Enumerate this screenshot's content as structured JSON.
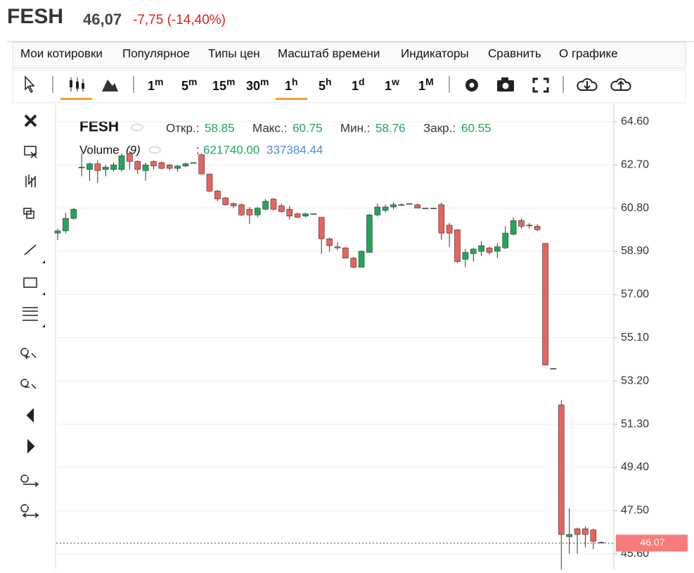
{
  "header": {
    "symbol": "FESH",
    "price": "46,07",
    "change": "-7,75 (-14,40%)"
  },
  "menu": [
    "Мои котировки",
    "Популярное",
    "Типы цен",
    "Масштаб времени",
    "Индикаторы",
    "Сравнить",
    "О графике"
  ],
  "timeframes": [
    {
      "main": "1",
      "sup": "m"
    },
    {
      "main": "5",
      "sup": "m"
    },
    {
      "main": "15",
      "sup": "m"
    },
    {
      "main": "30",
      "sup": "m"
    },
    {
      "main": "1",
      "sup": "h"
    },
    {
      "main": "5",
      "sup": "h"
    },
    {
      "main": "1",
      "sup": "d"
    },
    {
      "main": "1",
      "sup": "w"
    },
    {
      "main": "1",
      "sup": "M"
    }
  ],
  "chart_data": {
    "type": "candlestick",
    "title": "FESH",
    "legend": {
      "open_label": "Откр.:",
      "open": "58.85",
      "high_label": "Макс.:",
      "high": "60.75",
      "low_label": "Мин.:",
      "low": "58.76",
      "close_label": "Закр.:",
      "close": "60.55",
      "volume_label": "Volume",
      "volume_period": "(9)",
      "volume_sep": ":",
      "volume_up": "621740.00",
      "volume_down": "337384.44"
    },
    "open": [
      59.7,
      59.8,
      60.35,
      62.6,
      62.5,
      62.75,
      62.5,
      62.5,
      62.5,
      63.2,
      62.85,
      62.45,
      62.85,
      62.8,
      62.7,
      62.55,
      62.65,
      62.8,
      63.15,
      62.3,
      61.55,
      61.25,
      61.0,
      60.95,
      60.75,
      60.5,
      60.75,
      61.2,
      60.9,
      60.75,
      60.55,
      60.45,
      60.55,
      60.4,
      59.45,
      59.1,
      59.05,
      58.6,
      58.2,
      58.85,
      60.5,
      60.7,
      60.85,
      60.95,
      61.0,
      60.95,
      60.8,
      60.8,
      60.95,
      60.05,
      59.85,
      58.55,
      58.8,
      58.9,
      59.05,
      58.9,
      59.05,
      59.65,
      60.25,
      60.05,
      60.0,
      59.25,
      53.75,
      52.15,
      46.35,
      46.7,
      46.7,
      46.65,
      46.1
    ],
    "high": [
      59.9,
      60.6,
      60.8,
      63.2,
      62.8,
      62.9,
      62.7,
      62.8,
      63.2,
      63.3,
      62.9,
      62.8,
      62.9,
      62.85,
      62.75,
      62.7,
      62.8,
      62.8,
      63.2,
      62.3,
      61.6,
      61.3,
      61.05,
      61.0,
      60.85,
      60.85,
      61.2,
      61.25,
      61.0,
      60.9,
      60.6,
      60.6,
      60.55,
      60.4,
      59.5,
      59.3,
      59.1,
      58.65,
      58.95,
      60.55,
      61.0,
      60.95,
      61.05,
      61.0,
      61.0,
      61.0,
      60.8,
      60.8,
      61.05,
      60.15,
      59.85,
      59.0,
      59.05,
      59.35,
      59.1,
      59.25,
      60.0,
      60.4,
      60.35,
      60.15,
      60.1,
      59.25,
      53.75,
      52.35,
      47.6,
      46.75,
      46.8,
      46.7,
      46.15
    ],
    "low": [
      59.4,
      59.7,
      60.3,
      62.2,
      62.0,
      61.9,
      62.2,
      62.4,
      62.4,
      62.5,
      62.3,
      62.0,
      62.5,
      62.5,
      62.45,
      62.4,
      62.6,
      62.8,
      62.3,
      61.5,
      61.1,
      60.9,
      60.8,
      60.45,
      60.1,
      60.4,
      60.7,
      60.7,
      60.6,
      60.3,
      60.35,
      60.4,
      60.55,
      58.8,
      58.9,
      58.95,
      58.6,
      58.15,
      58.2,
      58.85,
      60.45,
      60.6,
      60.75,
      60.9,
      61.0,
      60.8,
      60.8,
      60.8,
      59.4,
      59.1,
      58.4,
      58.2,
      58.45,
      58.7,
      58.75,
      58.6,
      59.0,
      59.6,
      59.9,
      59.9,
      59.8,
      53.9,
      53.75,
      44.9,
      45.6,
      45.6,
      45.9,
      45.8,
      46.05
    ],
    "close": [
      59.8,
      60.35,
      60.75,
      62.6,
      62.75,
      62.45,
      62.6,
      62.7,
      63.1,
      62.85,
      62.5,
      62.7,
      62.65,
      62.55,
      62.55,
      62.65,
      62.75,
      62.8,
      62.3,
      61.55,
      61.2,
      60.95,
      60.9,
      60.5,
      60.5,
      60.8,
      61.1,
      60.75,
      60.65,
      60.45,
      60.4,
      60.55,
      60.55,
      59.45,
      59.15,
      59.05,
      58.6,
      58.2,
      58.9,
      60.5,
      60.85,
      60.85,
      60.95,
      60.95,
      61.0,
      60.8,
      60.8,
      60.8,
      59.7,
      59.7,
      58.45,
      58.85,
      59.0,
      59.15,
      58.85,
      59.1,
      59.7,
      60.25,
      60.0,
      60.05,
      59.85,
      53.9,
      53.75,
      46.45,
      46.45,
      46.45,
      46.45,
      46.15,
      46.07
    ],
    "up_color": "#1fa85a",
    "down_color": "#f0605a",
    "ylim": [
      44.91,
      65.37
    ],
    "yticks": [
      {
        "value": 64.6,
        "label": "64.60"
      },
      {
        "value": 62.7,
        "label": "62.70"
      },
      {
        "value": 60.8,
        "label": "60.80"
      },
      {
        "value": 58.9,
        "label": "58.90"
      },
      {
        "value": 57,
        "label": "57.00"
      },
      {
        "value": 55.1,
        "label": "55.10"
      },
      {
        "value": 53.2,
        "label": "53.20"
      },
      {
        "value": 51.3,
        "label": "51.30"
      },
      {
        "value": 49.4,
        "label": "49.40"
      },
      {
        "value": 47.5,
        "label": "47.50"
      },
      {
        "value": 45.6,
        "label": "45.60"
      }
    ],
    "grid": true,
    "last_price": 46.07,
    "last_price_color": "#f77b7b"
  }
}
